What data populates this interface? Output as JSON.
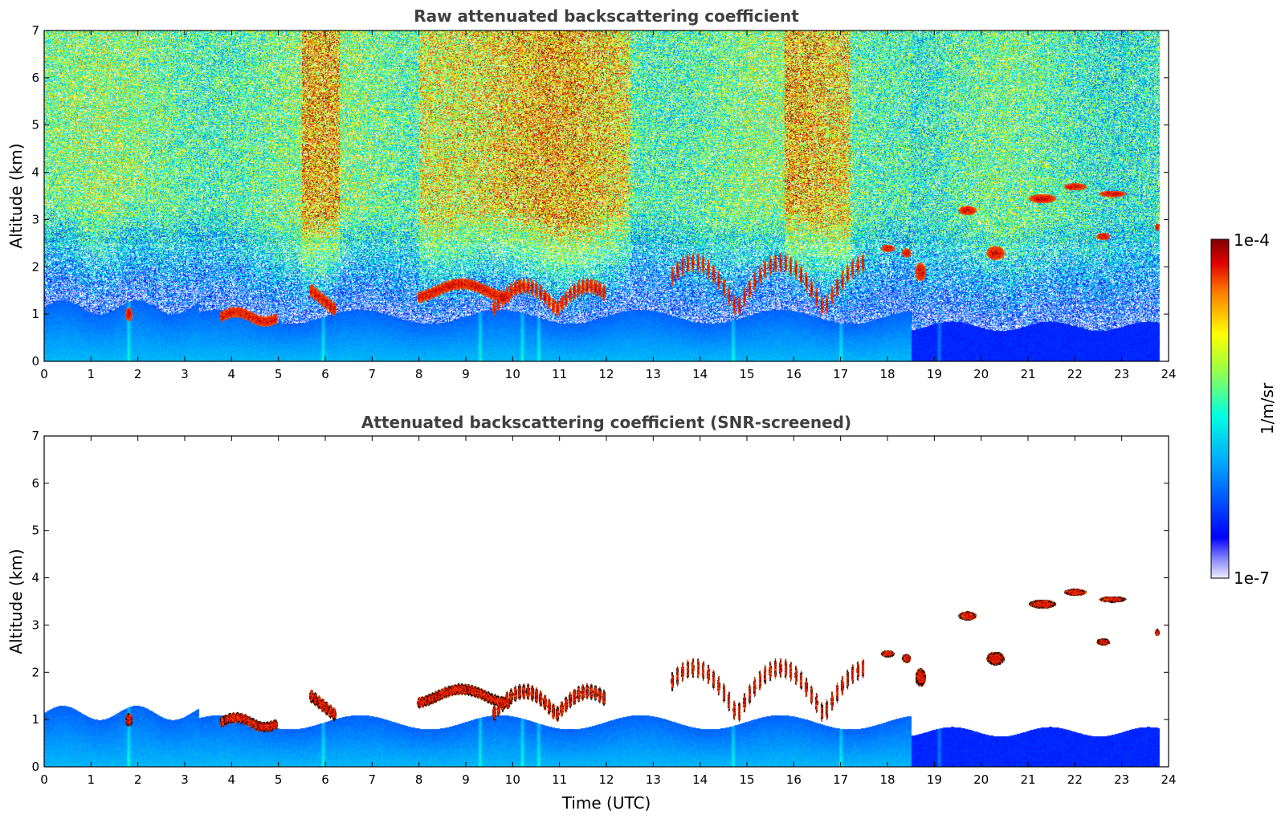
{
  "chart_data": [
    {
      "type": "heatmap",
      "title": "Raw attenuated backscattering coefficient",
      "xlabel": "",
      "ylabel": "Altitude (km)",
      "xlim": [
        0,
        24
      ],
      "ylim": [
        0,
        7
      ],
      "xticks": [
        0,
        1,
        2,
        3,
        4,
        5,
        6,
        7,
        8,
        9,
        10,
        11,
        12,
        13,
        14,
        15,
        16,
        17,
        18,
        19,
        20,
        21,
        22,
        23,
        24
      ],
      "yticks": [
        0,
        1,
        2,
        3,
        4,
        5,
        6,
        7
      ],
      "data_end_time": 23.8,
      "variant": "raw"
    },
    {
      "type": "heatmap",
      "title": "Attenuated backscattering coefficient (SNR-screened)",
      "xlabel": "Time (UTC)",
      "ylabel": "Altitude (km)",
      "xlim": [
        0,
        24
      ],
      "ylim": [
        0,
        7
      ],
      "xticks": [
        0,
        1,
        2,
        3,
        4,
        5,
        6,
        7,
        8,
        9,
        10,
        11,
        12,
        13,
        14,
        15,
        16,
        17,
        18,
        19,
        20,
        21,
        22,
        23,
        24
      ],
      "yticks": [
        0,
        1,
        2,
        3,
        4,
        5,
        6,
        7
      ],
      "data_end_time": 23.8,
      "variant": "screened"
    }
  ],
  "colorbar": {
    "label": "1/m/sr",
    "min_label": "1e-7",
    "max_label": "1e-4",
    "colors": [
      "#ffffff",
      "#c8c8ff",
      "#0000ff",
      "#00a0ff",
      "#00ffe0",
      "#ffff00",
      "#ff8000",
      "#e00000",
      "#800000"
    ]
  }
}
